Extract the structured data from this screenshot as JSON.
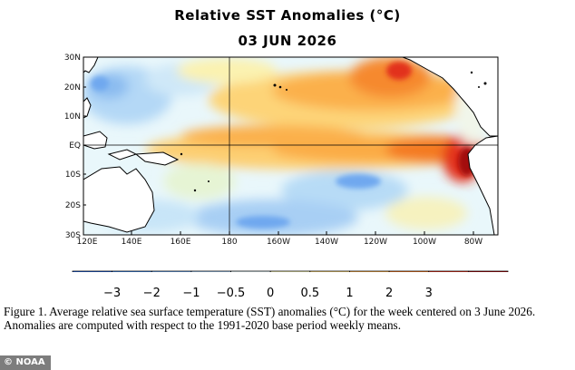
{
  "title": "Relative SST Anomalies (°C)",
  "date": "03 JUN 2026",
  "map": {
    "lat_labels": [
      "30N",
      "20N",
      "10N",
      "EQ",
      "10S",
      "20S",
      "30S"
    ],
    "lon_labels": [
      "120E",
      "140E",
      "160E",
      "180",
      "160W",
      "140W",
      "120W",
      "100W",
      "80W"
    ],
    "equator_line": true,
    "colors": {
      "land": "#ffffff",
      "coastline": "#000000"
    }
  },
  "colorbar": {
    "colors": [
      "#1f5fd6",
      "#3e85e6",
      "#6fa8ef",
      "#a8d0f6",
      "#e6f6fb",
      "#fbf6b8",
      "#fdd778",
      "#fcae45",
      "#f67a1f",
      "#e2321b",
      "#a3080a"
    ],
    "tick_labels": [
      "−3",
      "−2",
      "−1",
      "−0.5",
      "0",
      "0.5",
      "1",
      "2",
      "3"
    ]
  },
  "caption": "Figure 1. Average relative sea surface temperature (SST) anomalies (°C) for the week centered on 3 June 2026.  Anomalies are computed with respect to the 1991-2020 base period weekly means.",
  "credit": "© NOAA"
}
